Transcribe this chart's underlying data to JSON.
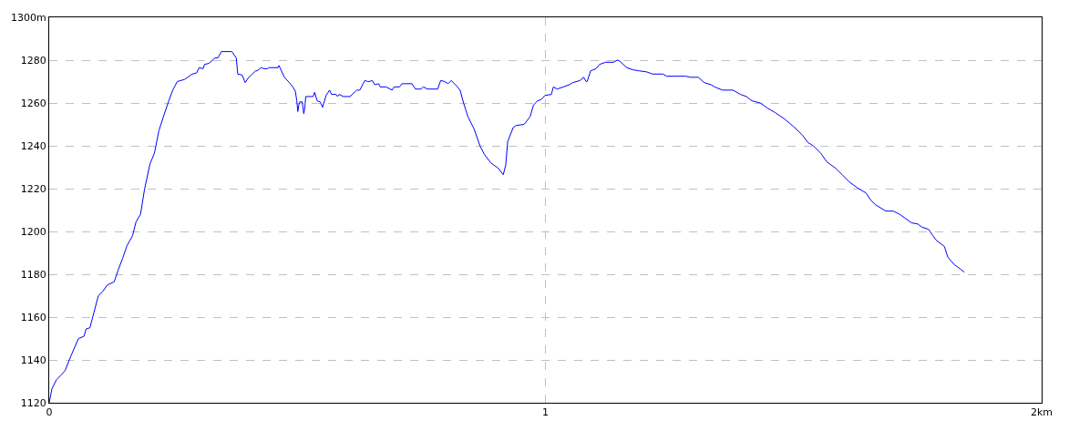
{
  "chart_data": {
    "type": "line",
    "xlim": [
      0,
      2
    ],
    "xticks": [
      0,
      1,
      {
        "value": 2,
        "label": "2km"
      }
    ],
    "ylim": [
      1120,
      1300
    ],
    "yticks": [
      1120,
      1140,
      1160,
      1180,
      1200,
      1220,
      1240,
      1260,
      1280,
      {
        "value": 1300,
        "label": "1300m"
      }
    ],
    "grid": true,
    "marker": "none",
    "line_style": "solid",
    "series": [
      {
        "color": "#0000ff",
        "x": [
          0,
          0.0055,
          0.0147,
          0.024,
          0.032,
          0.044,
          0.059,
          0.07,
          0.0745,
          0.082,
          0.09,
          0.099,
          0.108,
          0.117,
          0.131,
          0.139,
          0.148,
          0.157,
          0.168,
          0.175,
          0.184,
          0.192,
          0.203,
          0.212,
          0.221,
          0.23,
          0.241,
          0.249,
          0.258,
          0.273,
          0.288,
          0.297,
          0.302,
          0.31,
          0.313,
          0.322,
          0.334,
          0.34,
          0.347,
          0.368,
          0.377,
          0.38,
          0.389,
          0.395,
          0.402,
          0.407,
          0.416,
          0.419,
          0.427,
          0.433,
          0.44,
          0.443,
          0.461,
          0.463,
          0.474,
          0.484,
          0.491,
          0.496,
          0.499,
          0.501,
          0.503,
          0.505,
          0.51,
          0.513,
          0.515,
          0.517,
          0.532,
          0.535,
          0.54,
          0.546,
          0.551,
          0.558,
          0.565,
          0.569,
          0.578,
          0.581,
          0.584,
          0.593,
          0.606,
          0.62,
          0.626,
          0.636,
          0.642,
          0.645,
          0.651,
          0.656,
          0.664,
          0.667,
          0.679,
          0.691,
          0.695,
          0.706,
          0.711,
          0.731,
          0.738,
          0.749,
          0.754,
          0.762,
          0.783,
          0.789,
          0.797,
          0.804,
          0.81,
          0.821,
          0.828,
          0.835,
          0.844,
          0.856,
          0.868,
          0.877,
          0.89,
          0.905,
          0.915,
          0.92,
          0.924,
          0.935,
          0.941,
          0.957,
          0.969,
          0.976,
          0.984,
          0.991,
          0.999,
          1.012,
          1.016,
          1.024,
          1.036,
          1.048,
          1.055,
          1.07,
          1.077,
          1.082,
          1.084,
          1.091,
          1.102,
          1.109,
          1.121,
          1.137,
          1.145,
          1.15,
          1.164,
          1.176,
          1.189,
          1.204,
          1.216,
          1.237,
          1.244,
          1.283,
          1.292,
          1.308,
          1.32,
          1.334,
          1.341,
          1.357,
          1.378,
          1.393,
          1.405,
          1.416,
          1.433,
          1.448,
          1.463,
          1.482,
          1.5,
          1.518,
          1.529,
          1.54,
          1.555,
          1.567,
          1.585,
          1.598,
          1.613,
          1.631,
          1.646,
          1.656,
          1.665,
          1.686,
          1.701,
          1.714,
          1.738,
          1.75,
          1.759,
          1.772,
          1.781,
          1.787,
          1.804,
          1.811,
          1.824,
          1.836,
          1.844
        ],
        "values": [
          1120,
          1126.5,
          1130.8,
          1133,
          1135,
          1142,
          1150,
          1151,
          1154.5,
          1155,
          1162,
          1170,
          1172,
          1175,
          1176.5,
          1182,
          1187.5,
          1193.5,
          1198,
          1204.5,
          1208,
          1219.5,
          1231.5,
          1236.5,
          1247,
          1253.5,
          1261,
          1266,
          1270,
          1271,
          1273.5,
          1274,
          1276.5,
          1276,
          1278,
          1278.5,
          1281,
          1281,
          1284,
          1284,
          1281,
          1273.5,
          1273,
          1269.5,
          1272,
          1273,
          1275,
          1275,
          1276.5,
          1276,
          1276,
          1276.5,
          1276.5,
          1277.5,
          1272,
          1269.5,
          1267.5,
          1265.5,
          1261,
          1256,
          1259,
          1260.5,
          1260.5,
          1255,
          1257.5,
          1263,
          1263,
          1265,
          1261,
          1260.5,
          1258,
          1263.5,
          1266,
          1264,
          1264,
          1263,
          1264,
          1263,
          1263,
          1266,
          1266,
          1270.5,
          1270,
          1270,
          1270.5,
          1268.5,
          1269,
          1267.5,
          1267.5,
          1266,
          1267.5,
          1267.5,
          1269,
          1269,
          1266.5,
          1266.5,
          1267.5,
          1266.5,
          1266.5,
          1270.5,
          1270,
          1269,
          1270.5,
          1268,
          1266,
          1260,
          1253.5,
          1248,
          1240,
          1236,
          1232,
          1229.5,
          1226.5,
          1231,
          1242,
          1248.5,
          1249.5,
          1250,
          1253.5,
          1259,
          1261,
          1261.5,
          1263.5,
          1264,
          1267.5,
          1266.5,
          1267.5,
          1268.5,
          1269.5,
          1270.5,
          1272,
          1270,
          1270,
          1275,
          1276,
          1278,
          1279,
          1279,
          1280,
          1279.5,
          1276.5,
          1275.5,
          1275,
          1274.5,
          1273.5,
          1273.5,
          1272.5,
          1272.5,
          1272,
          1272,
          1269.5,
          1268.5,
          1267.5,
          1266,
          1266,
          1264,
          1263,
          1261,
          1260,
          1257.5,
          1255.5,
          1252.5,
          1249,
          1245,
          1241.5,
          1240,
          1236.5,
          1232.5,
          1229.5,
          1226.5,
          1223,
          1220,
          1218,
          1214.5,
          1212.5,
          1209.5,
          1209.5,
          1208,
          1204,
          1203.5,
          1202,
          1201,
          1198,
          1196,
          1193,
          1188,
          1184.5,
          1182.5,
          1181
        ]
      }
    ]
  }
}
